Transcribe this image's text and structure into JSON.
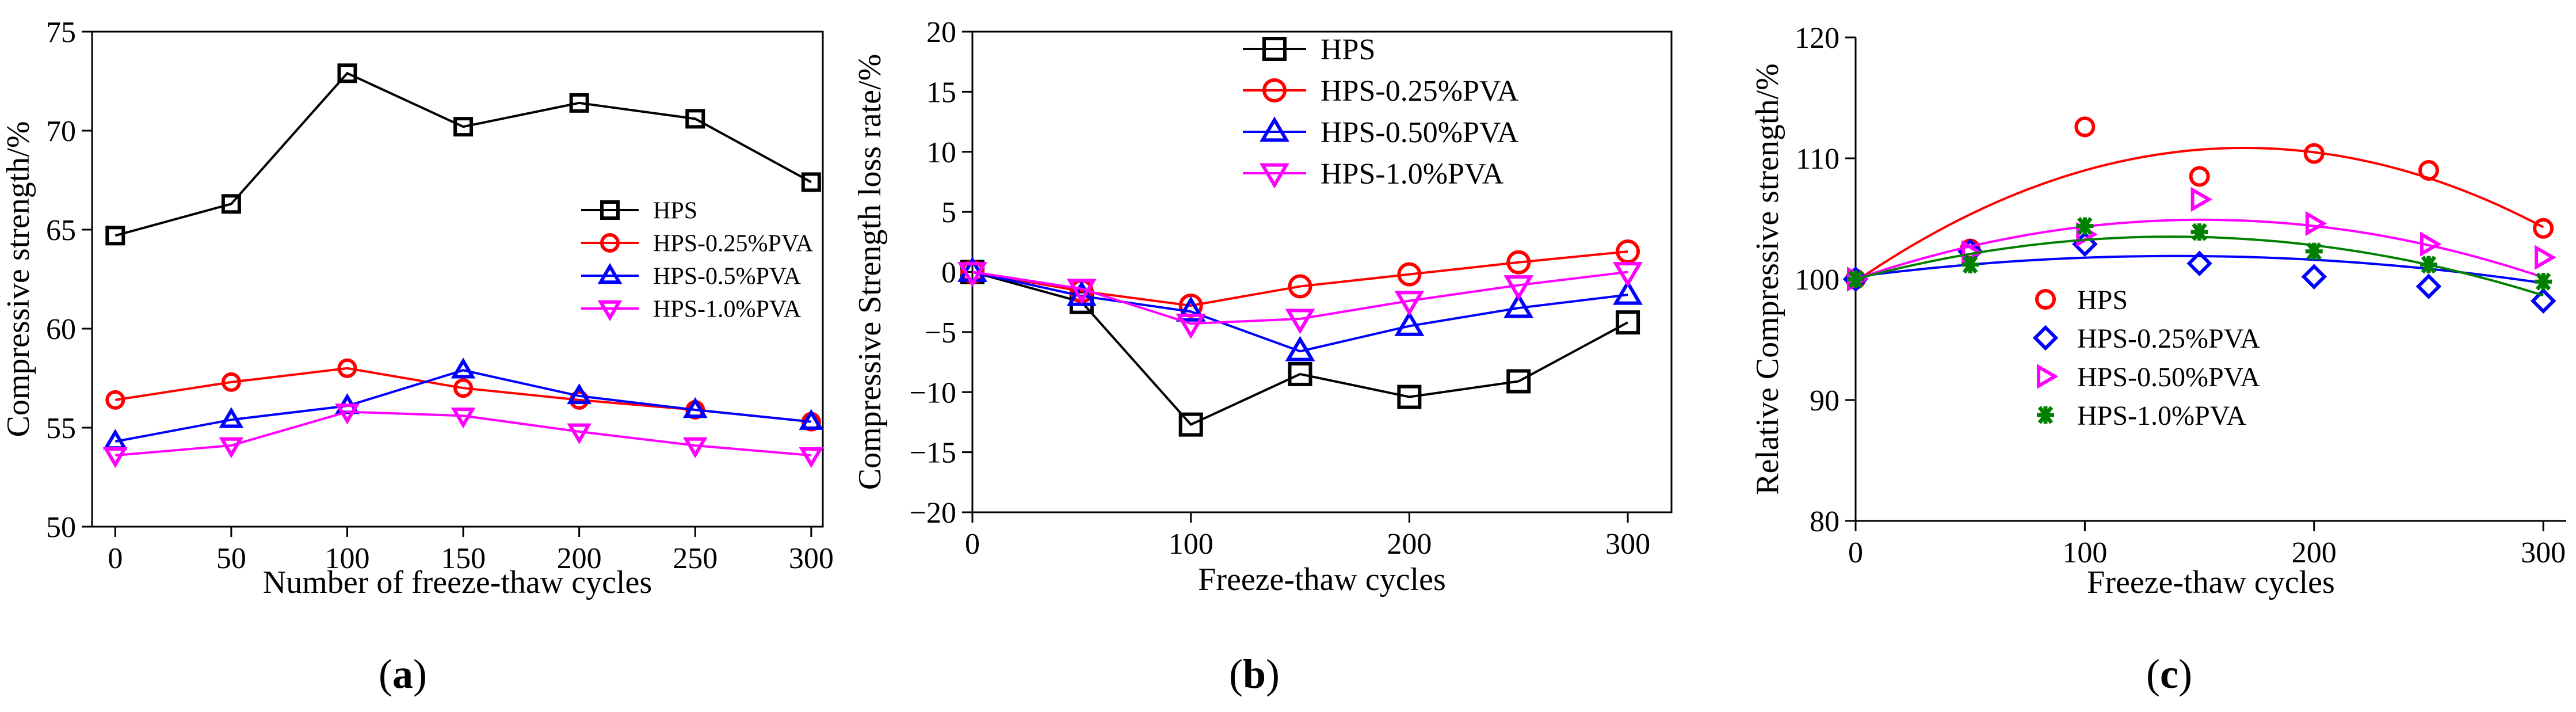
{
  "chart_data": [
    {
      "id": "a",
      "type": "line",
      "caption": "a",
      "xlabel": "Number of freeze-thaw cycles",
      "ylabel": "Compressive strength/%",
      "xlim": [
        -10,
        305
      ],
      "ylim": [
        50,
        75
      ],
      "xticks": [
        0,
        50,
        100,
        150,
        200,
        250,
        300
      ],
      "yticks": [
        50,
        55,
        60,
        65,
        70,
        75
      ],
      "x": [
        0,
        50,
        100,
        150,
        200,
        250,
        300
      ],
      "legend_position": "center-right",
      "series": [
        {
          "name": "HPS",
          "color": "#000000",
          "marker": "square",
          "values": [
            64.7,
            66.3,
            72.9,
            70.2,
            71.4,
            70.6,
            67.4
          ]
        },
        {
          "name": "HPS-0.25%PVA",
          "color": "#ff0000",
          "marker": "circle",
          "values": [
            56.4,
            57.3,
            58.0,
            57.0,
            56.4,
            55.9,
            55.3
          ]
        },
        {
          "name": "HPS-0.5%PVA",
          "color": "#0000ff",
          "marker": "triangle-up",
          "values": [
            54.3,
            55.4,
            56.1,
            57.9,
            56.6,
            55.9,
            55.3
          ]
        },
        {
          "name": "HPS-1.0%PVA",
          "color": "#ff00ff",
          "marker": "triangle-down",
          "values": [
            53.6,
            54.1,
            55.8,
            55.6,
            54.8,
            54.1,
            53.6
          ]
        }
      ]
    },
    {
      "id": "b",
      "type": "line",
      "caption": "b",
      "xlabel": "Freeze-thaw cycles",
      "ylabel": "Compressive Strength loss rate/%",
      "xlim": [
        0,
        320
      ],
      "ylim": [
        -20,
        20
      ],
      "xticks": [
        0,
        100,
        200,
        300
      ],
      "yticks": [
        -20,
        -15,
        -10,
        -5,
        0,
        5,
        10,
        15,
        20
      ],
      "x": [
        0,
        50,
        100,
        150,
        200,
        250,
        300
      ],
      "legend_position": "top-center",
      "series": [
        {
          "name": "HPS",
          "color": "#000000",
          "marker": "square",
          "values": [
            0,
            -2.5,
            -12.7,
            -8.5,
            -10.4,
            -9.1,
            -4.2
          ]
        },
        {
          "name": "HPS-0.25%PVA",
          "color": "#ff0000",
          "marker": "circle",
          "values": [
            0,
            -1.6,
            -2.8,
            -1.2,
            -0.2,
            0.8,
            1.7
          ]
        },
        {
          "name": "HPS-0.50%PVA",
          "color": "#0000ff",
          "marker": "triangle-up",
          "values": [
            0,
            -2.0,
            -3.3,
            -6.6,
            -4.5,
            -3.0,
            -1.9
          ]
        },
        {
          "name": "HPS-1.0%PVA",
          "color": "#ff00ff",
          "marker": "triangle-down",
          "values": [
            0,
            -1.4,
            -4.3,
            -3.9,
            -2.4,
            -1.1,
            0
          ]
        }
      ]
    },
    {
      "id": "c",
      "type": "scatter",
      "caption": "c",
      "xlabel": "Freeze-thaw cycles",
      "ylabel": "Relative Compressive strength/%",
      "xlim": [
        0,
        310
      ],
      "ylim": [
        80,
        120
      ],
      "xticks": [
        0,
        100,
        200,
        300
      ],
      "yticks": [
        80,
        90,
        100,
        110,
        120
      ],
      "x": [
        0,
        50,
        100,
        150,
        200,
        250,
        300
      ],
      "legend_position": "bottom-center",
      "series": [
        {
          "name": "HPS",
          "color": "#ff0000",
          "marker": "circle",
          "values": [
            100,
            102.5,
            112.6,
            108.5,
            110.4,
            109.0,
            104.2
          ],
          "fit": [
            99.8,
            0.1305,
            -0.000385
          ]
        },
        {
          "name": "HPS-0.25%PVA",
          "color": "#0000ff",
          "marker": "diamond",
          "values": [
            100,
            102.3,
            102.9,
            101.3,
            100.2,
            99.4,
            98.2
          ],
          "fit": [
            100.2,
            0.0245,
            -8.75e-05
          ]
        },
        {
          "name": "HPS-0.50%PVA",
          "color": "#ff00ff",
          "marker": "triangle-right",
          "values": [
            100,
            102.2,
            103.7,
            106.6,
            104.6,
            102.9,
            101.8
          ],
          "fit": [
            100.0,
            0.065,
            -0.000215
          ]
        },
        {
          "name": "HPS-1.0%PVA",
          "color": "#008000",
          "marker": "asterisk",
          "values": [
            100,
            101.2,
            104.4,
            103.9,
            102.3,
            101.2,
            99.8
          ],
          "fit": [
            100.0,
            0.051,
            -0.000185
          ]
        }
      ]
    }
  ]
}
